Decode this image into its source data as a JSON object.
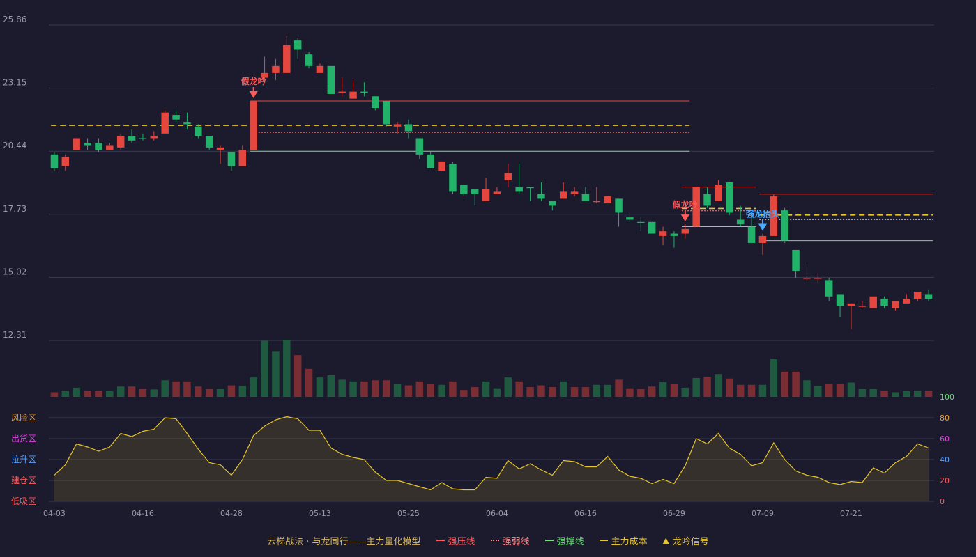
{
  "colors": {
    "background": "#1b1b2d",
    "up": "#e5473f",
    "down": "#22b26a",
    "grid": "#3a3b52",
    "axis_text": "#9a9aa8",
    "cost_line": "#e8c52a",
    "resist_line": "#e5473f",
    "weak_line": "#ff8a8a",
    "support_line": "#6fe07a",
    "zone_line": "#e8c52a",
    "signal_fake": "#ff5a5a",
    "signal_true": "#4aa8ff"
  },
  "legend": {
    "title": "云梯战法 · 与龙同行——主力量化模型",
    "items": [
      {
        "label": "强压线",
        "color": "#ff5a5a",
        "style": "solid"
      },
      {
        "label": "强弱线",
        "color": "#ff8a8a",
        "style": "dotted"
      },
      {
        "label": "强撑线",
        "color": "#6fe07a",
        "style": "solid"
      },
      {
        "label": "主力成本",
        "color": "#e8c52a",
        "style": "dashed"
      },
      {
        "label": "龙吟信号",
        "color": "#e8c52a",
        "style": "triangle",
        "symbol": "▲"
      }
    ]
  },
  "chart_data": {
    "type": "candlestick",
    "price_axis": {
      "ticks": [
        "25.86",
        "23.15",
        "20.44",
        "17.73",
        "15.02",
        "12.31"
      ],
      "ylim": [
        12.31,
        25.86
      ]
    },
    "x_axis": {
      "tick_labels": [
        {
          "index": 0,
          "label": "04-03"
        },
        {
          "index": 8,
          "label": "04-16"
        },
        {
          "index": 16,
          "label": "04-28"
        },
        {
          "index": 24,
          "label": "05-13"
        },
        {
          "index": 32,
          "label": "05-25"
        },
        {
          "index": 40,
          "label": "06-04"
        },
        {
          "index": 48,
          "label": "06-16"
        },
        {
          "index": 56,
          "label": "06-29"
        },
        {
          "index": 64,
          "label": "07-09"
        },
        {
          "index": 72,
          "label": "07-21"
        }
      ]
    },
    "candles": [
      [
        19.7,
        20.3,
        20.4,
        19.6,
        "down"
      ],
      [
        19.8,
        20.2,
        20.3,
        19.6,
        "up"
      ],
      [
        20.5,
        21.0,
        21.0,
        20.5,
        "up"
      ],
      [
        20.8,
        20.7,
        21.0,
        20.5,
        "down"
      ],
      [
        20.8,
        20.5,
        21.0,
        20.4,
        "down"
      ],
      [
        20.5,
        20.7,
        20.8,
        20.5,
        "up"
      ],
      [
        20.6,
        21.1,
        21.2,
        20.5,
        "up"
      ],
      [
        21.1,
        20.9,
        21.4,
        20.8,
        "down"
      ],
      [
        21.0,
        21.0,
        21.2,
        20.9,
        "down"
      ],
      [
        21.0,
        21.1,
        21.3,
        20.9,
        "up"
      ],
      [
        21.2,
        22.1,
        22.2,
        21.2,
        "up"
      ],
      [
        22.0,
        21.8,
        22.2,
        21.7,
        "down"
      ],
      [
        21.7,
        21.6,
        22.1,
        21.4,
        "down"
      ],
      [
        21.5,
        21.1,
        21.6,
        21.0,
        "down"
      ],
      [
        21.1,
        20.6,
        21.1,
        20.5,
        "down"
      ],
      [
        20.5,
        20.6,
        20.7,
        19.9,
        "up"
      ],
      [
        20.4,
        19.8,
        20.4,
        19.6,
        "down"
      ],
      [
        19.8,
        20.5,
        20.7,
        19.8,
        "up"
      ],
      [
        20.5,
        22.6,
        22.6,
        20.5,
        "up"
      ],
      [
        23.6,
        23.8,
        24.5,
        23.4,
        "up"
      ],
      [
        23.8,
        24.1,
        24.4,
        23.5,
        "up"
      ],
      [
        23.8,
        25.0,
        25.4,
        23.8,
        "up"
      ],
      [
        25.2,
        24.8,
        25.3,
        24.4,
        "down"
      ],
      [
        24.6,
        24.1,
        24.7,
        24.0,
        "down"
      ],
      [
        23.8,
        24.1,
        24.2,
        23.8,
        "up"
      ],
      [
        24.1,
        22.9,
        24.1,
        22.9,
        "down"
      ],
      [
        23.0,
        23.0,
        23.6,
        22.8,
        "up"
      ],
      [
        22.7,
        23.0,
        23.5,
        22.7,
        "up"
      ],
      [
        23.0,
        23.0,
        23.4,
        22.8,
        "down"
      ],
      [
        22.8,
        22.3,
        22.8,
        22.2,
        "down"
      ],
      [
        22.6,
        21.6,
        22.6,
        21.5,
        "down"
      ],
      [
        21.5,
        21.6,
        21.7,
        21.2,
        "up"
      ],
      [
        21.6,
        21.3,
        21.8,
        21.0,
        "down"
      ],
      [
        21.0,
        20.3,
        21.0,
        20.1,
        "down"
      ],
      [
        20.3,
        19.7,
        20.4,
        19.7,
        "down"
      ],
      [
        19.6,
        20.0,
        20.0,
        19.6,
        "up"
      ],
      [
        19.9,
        18.7,
        20.0,
        18.6,
        "down"
      ],
      [
        19.0,
        18.6,
        19.0,
        18.5,
        "down"
      ],
      [
        18.8,
        18.6,
        18.8,
        18.1,
        "down"
      ],
      [
        18.3,
        18.8,
        19.3,
        18.3,
        "up"
      ],
      [
        18.6,
        18.7,
        18.9,
        18.6,
        "up"
      ],
      [
        19.2,
        19.5,
        19.9,
        18.9,
        "up"
      ],
      [
        18.9,
        18.7,
        19.9,
        18.6,
        "down"
      ],
      [
        18.9,
        18.9,
        18.9,
        18.3,
        "down"
      ],
      [
        18.6,
        18.4,
        19.1,
        18.3,
        "down"
      ],
      [
        18.3,
        18.1,
        18.3,
        17.9,
        "down"
      ],
      [
        18.4,
        18.7,
        19.1,
        18.4,
        "up"
      ],
      [
        18.6,
        18.7,
        18.9,
        18.5,
        "up"
      ],
      [
        18.6,
        18.3,
        18.9,
        18.3,
        "down"
      ],
      [
        18.3,
        18.3,
        18.9,
        18.2,
        "up"
      ],
      [
        18.2,
        18.5,
        18.5,
        18.2,
        "up"
      ],
      [
        18.4,
        17.8,
        18.4,
        17.2,
        "down"
      ],
      [
        17.6,
        17.5,
        17.8,
        17.4,
        "down"
      ],
      [
        17.4,
        17.4,
        17.6,
        17.0,
        "down"
      ],
      [
        17.4,
        16.9,
        17.4,
        16.9,
        "down"
      ],
      [
        16.8,
        17.0,
        17.2,
        16.4,
        "up"
      ],
      [
        16.9,
        16.8,
        17.0,
        16.3,
        "down"
      ],
      [
        16.9,
        17.1,
        17.3,
        16.7,
        "up"
      ],
      [
        17.2,
        18.9,
        18.9,
        17.2,
        "up"
      ],
      [
        18.6,
        18.1,
        18.9,
        18.0,
        "down"
      ],
      [
        18.3,
        19.0,
        19.2,
        18.3,
        "up"
      ],
      [
        19.1,
        17.8,
        19.1,
        17.7,
        "down"
      ],
      [
        17.5,
        17.3,
        18.1,
        17.2,
        "down"
      ],
      [
        17.2,
        16.5,
        17.7,
        16.5,
        "down"
      ],
      [
        16.5,
        16.8,
        16.9,
        16.0,
        "up"
      ],
      [
        16.8,
        18.5,
        18.6,
        16.8,
        "up"
      ],
      [
        17.9,
        16.6,
        18.0,
        16.5,
        "down"
      ],
      [
        16.2,
        15.3,
        16.2,
        15.0,
        "down"
      ],
      [
        15.0,
        15.0,
        15.6,
        14.9,
        "up"
      ],
      [
        15.0,
        15.0,
        15.2,
        14.8,
        "up"
      ],
      [
        14.9,
        14.2,
        15.0,
        14.0,
        "down"
      ],
      [
        14.3,
        13.8,
        14.3,
        13.3,
        "down"
      ],
      [
        13.8,
        13.9,
        13.9,
        12.8,
        "up"
      ],
      [
        13.8,
        13.8,
        14.0,
        13.7,
        "up"
      ],
      [
        13.7,
        14.2,
        14.2,
        13.7,
        "up"
      ],
      [
        14.1,
        13.8,
        14.2,
        13.7,
        "down"
      ],
      [
        13.7,
        14.0,
        14.0,
        13.6,
        "up"
      ],
      [
        13.9,
        14.1,
        14.3,
        13.9,
        "up"
      ],
      [
        14.1,
        14.4,
        14.4,
        14.0,
        "up"
      ],
      [
        14.3,
        14.1,
        14.5,
        14.0,
        "down"
      ]
    ],
    "volume": [
      [
        0.08,
        "up"
      ],
      [
        0.1,
        "down"
      ],
      [
        0.16,
        "down"
      ],
      [
        0.11,
        "up"
      ],
      [
        0.11,
        "up"
      ],
      [
        0.1,
        "down"
      ],
      [
        0.18,
        "down"
      ],
      [
        0.18,
        "up"
      ],
      [
        0.14,
        "up"
      ],
      [
        0.13,
        "down"
      ],
      [
        0.29,
        "down"
      ],
      [
        0.27,
        "up"
      ],
      [
        0.27,
        "up"
      ],
      [
        0.18,
        "up"
      ],
      [
        0.14,
        "up"
      ],
      [
        0.14,
        "down"
      ],
      [
        0.2,
        "up"
      ],
      [
        0.19,
        "down"
      ],
      [
        0.34,
        "down"
      ],
      [
        0.98,
        "down"
      ],
      [
        0.8,
        "down"
      ],
      [
        1.0,
        "down"
      ],
      [
        0.73,
        "up"
      ],
      [
        0.49,
        "up"
      ],
      [
        0.34,
        "down"
      ],
      [
        0.38,
        "down"
      ],
      [
        0.3,
        "down"
      ],
      [
        0.27,
        "down"
      ],
      [
        0.27,
        "up"
      ],
      [
        0.29,
        "up"
      ],
      [
        0.29,
        "up"
      ],
      [
        0.22,
        "down"
      ],
      [
        0.2,
        "up"
      ],
      [
        0.27,
        "up"
      ],
      [
        0.22,
        "up"
      ],
      [
        0.21,
        "down"
      ],
      [
        0.27,
        "up"
      ],
      [
        0.12,
        "up"
      ],
      [
        0.17,
        "up"
      ],
      [
        0.27,
        "down"
      ],
      [
        0.15,
        "down"
      ],
      [
        0.34,
        "down"
      ],
      [
        0.27,
        "up"
      ],
      [
        0.17,
        "up"
      ],
      [
        0.2,
        "up"
      ],
      [
        0.17,
        "up"
      ],
      [
        0.27,
        "down"
      ],
      [
        0.17,
        "up"
      ],
      [
        0.17,
        "up"
      ],
      [
        0.21,
        "down"
      ],
      [
        0.21,
        "down"
      ],
      [
        0.3,
        "up"
      ],
      [
        0.15,
        "up"
      ],
      [
        0.14,
        "up"
      ],
      [
        0.18,
        "up"
      ],
      [
        0.26,
        "down"
      ],
      [
        0.22,
        "up"
      ],
      [
        0.16,
        "down"
      ],
      [
        0.33,
        "down"
      ],
      [
        0.35,
        "up"
      ],
      [
        0.4,
        "down"
      ],
      [
        0.32,
        "up"
      ],
      [
        0.21,
        "up"
      ],
      [
        0.21,
        "up"
      ],
      [
        0.21,
        "down"
      ],
      [
        0.66,
        "down"
      ],
      [
        0.44,
        "up"
      ],
      [
        0.44,
        "up"
      ],
      [
        0.29,
        "down"
      ],
      [
        0.19,
        "down"
      ],
      [
        0.23,
        "up"
      ],
      [
        0.23,
        "up"
      ],
      [
        0.25,
        "down"
      ],
      [
        0.14,
        "down"
      ],
      [
        0.14,
        "down"
      ],
      [
        0.11,
        "up"
      ],
      [
        0.08,
        "down"
      ],
      [
        0.1,
        "down"
      ],
      [
        0.11,
        "down"
      ],
      [
        0.11,
        "up"
      ]
    ],
    "levels": [
      {
        "kind": "resist",
        "value": 22.6,
        "from": 18,
        "to": 57
      },
      {
        "kind": "cost",
        "value": 21.55,
        "from": 18,
        "to": 57
      },
      {
        "kind": "weak",
        "value": 21.25,
        "from": 18,
        "to": 57
      },
      {
        "kind": "support",
        "value": 20.44,
        "from": 18,
        "to": 57
      },
      {
        "kind": "cost",
        "value": 21.55,
        "from": 0,
        "to": 17
      },
      {
        "kind": "resist",
        "value": 18.9,
        "from": 57,
        "to": 63
      },
      {
        "kind": "cost",
        "value": 17.98,
        "from": 57,
        "to": 63
      },
      {
        "kind": "weak",
        "value": 17.88,
        "from": 57,
        "to": 63
      },
      {
        "kind": "support",
        "value": 17.2,
        "from": 57,
        "to": 63
      },
      {
        "kind": "resist",
        "value": 18.6,
        "from": 64,
        "to": 79
      },
      {
        "kind": "cost",
        "value": 17.7,
        "from": 64,
        "to": 79
      },
      {
        "kind": "weak",
        "value": 17.5,
        "from": 64,
        "to": 79
      },
      {
        "kind": "support",
        "value": 16.6,
        "from": 64,
        "to": 79
      }
    ],
    "signals": [
      {
        "index": 18,
        "label": "假龙吟",
        "kind": "fake"
      },
      {
        "index": 57,
        "label": "假龙吟",
        "kind": "fake"
      },
      {
        "index": 64,
        "label": "强龙抬头",
        "kind": "true"
      }
    ],
    "indicator": {
      "right_ticks": [
        "100",
        "80",
        "60",
        "40",
        "20",
        "0"
      ],
      "ylim": [
        0,
        100
      ],
      "zones": [
        {
          "label": "风险区",
          "value": 80,
          "color": "#e8a040"
        },
        {
          "label": "出货区",
          "value": 60,
          "color": "#e040e0"
        },
        {
          "label": "拉升区",
          "value": 40,
          "color": "#5aa0ff"
        },
        {
          "label": "建仓区",
          "value": 20,
          "color": "#ff5a5a"
        },
        {
          "label": "低吸区",
          "value": 0,
          "color": "#ff5a5a"
        }
      ],
      "values": [
        25,
        35,
        55,
        52,
        48,
        52,
        65,
        62,
        67,
        69,
        80,
        79,
        65,
        50,
        37,
        35,
        25,
        40,
        63,
        72,
        78,
        81,
        79,
        68,
        68,
        51,
        45,
        42,
        40,
        28,
        20,
        20,
        17,
        14,
        11,
        18,
        12,
        11,
        11,
        23,
        22,
        39,
        31,
        36,
        30,
        25,
        39,
        38,
        33,
        33,
        43,
        30,
        24,
        22,
        17,
        21,
        17,
        34,
        60,
        55,
        65,
        51,
        45,
        34,
        37,
        56,
        40,
        29,
        25,
        23,
        18,
        16,
        19,
        18,
        32,
        27,
        37,
        43,
        55,
        51
      ]
    }
  }
}
